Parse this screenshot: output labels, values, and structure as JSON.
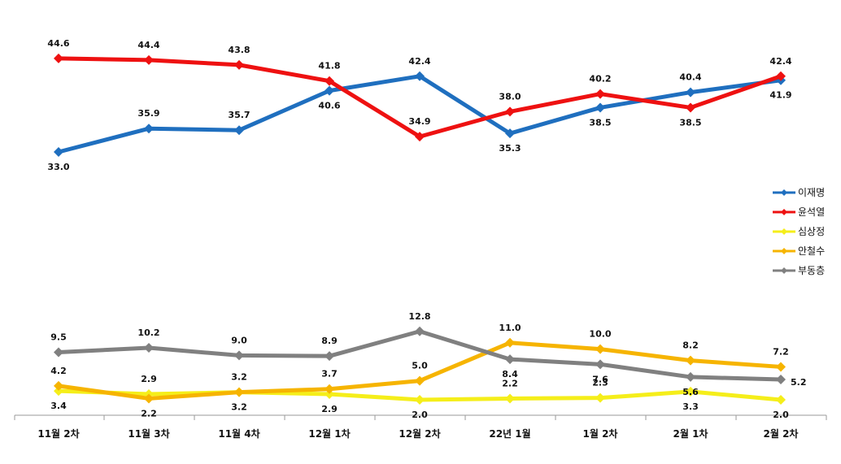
{
  "chart_data": {
    "type": "line",
    "categories": [
      "11월 2차",
      "11월 3차",
      "11월 4차",
      "12월 1차",
      "12월 2차",
      "22년 1월",
      "1월 2차",
      "2월 1차",
      "2월 2차"
    ],
    "series": [
      {
        "name": "이재명",
        "color": "#1f6fbf",
        "values": [
          33.0,
          35.9,
          35.7,
          40.6,
          42.4,
          35.3,
          38.5,
          40.4,
          41.9
        ]
      },
      {
        "name": "윤석열",
        "color": "#ee1111",
        "values": [
          44.6,
          44.4,
          43.8,
          41.8,
          34.9,
          38.0,
          40.2,
          38.5,
          42.4
        ]
      },
      {
        "name": "심상정",
        "color": "#f5ee1a",
        "values": [
          3.4,
          2.9,
          3.2,
          2.9,
          2.0,
          2.2,
          2.3,
          3.3,
          2.0
        ]
      },
      {
        "name": "안철수",
        "color": "#f6b400",
        "values": [
          4.2,
          2.2,
          3.2,
          3.7,
          5.0,
          11.0,
          10.0,
          8.2,
          7.2
        ]
      },
      {
        "name": "부동층",
        "color": "#808080",
        "values": [
          9.5,
          10.2,
          9.0,
          8.9,
          12.8,
          8.4,
          7.6,
          5.6,
          5.2
        ]
      }
    ],
    "value_labels": [
      [
        "33.0",
        "35.9",
        "35.7",
        "40.6",
        "42.4",
        "35.3",
        "38.5",
        "40.4",
        "41.9"
      ],
      [
        "44.6",
        "44.4",
        "43.8",
        "41.8",
        "34.9",
        "38.0",
        "40.2",
        "38.5",
        "42.4"
      ],
      [
        "3.4",
        "2.9",
        "3.2",
        "2.9",
        "2.0",
        "2.2",
        "2.3",
        "3.3",
        "2.0"
      ],
      [
        "4.2",
        "2.2",
        "3.2",
        "3.7",
        "5.0",
        "11.0",
        "10.0",
        "8.2",
        "7.2"
      ],
      [
        "9.5",
        "10.2",
        "9.0",
        "8.9",
        "12.8",
        "8.4",
        "7.6",
        "5.6",
        "5.2"
      ]
    ],
    "legend_position": "right",
    "grid": false,
    "axis_break": true,
    "title": "",
    "xlabel": "",
    "ylabel": ""
  }
}
